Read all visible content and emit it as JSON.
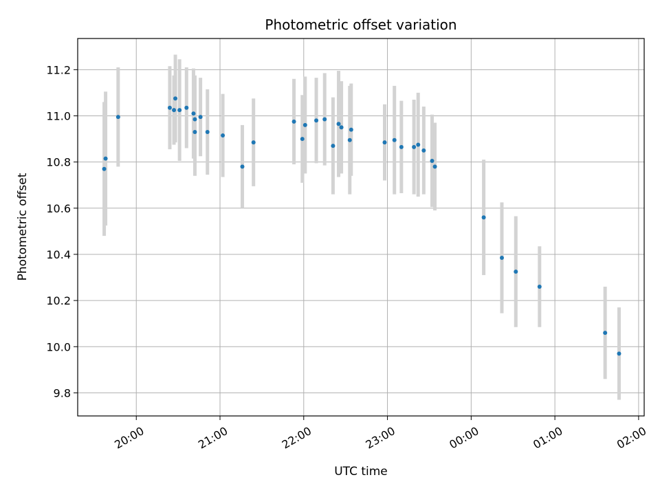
{
  "chart_data": {
    "type": "scatter",
    "title": "Photometric offset variation",
    "xlabel": "UTC time",
    "ylabel": "Photometric offset",
    "grid": true,
    "x_ticks": [
      "20:00",
      "21:00",
      "22:00",
      "23:00",
      "00:00",
      "01:00",
      "02:00"
    ],
    "y_ticks": [
      "9.8",
      "10.0",
      "10.2",
      "10.4",
      "10.6",
      "10.8",
      "11.0",
      "11.2"
    ],
    "xlim": [
      "19:18",
      "02:04"
    ],
    "ylim": [
      9.7,
      11.335
    ],
    "point_color": "#1f77b4",
    "errorbar_color": "#d3d3d3",
    "points": [
      {
        "x": "19:37",
        "y": 10.77,
        "err": 0.29
      },
      {
        "x": "19:38",
        "y": 10.815,
        "err": 0.29
      },
      {
        "x": "19:47",
        "y": 10.995,
        "err": 0.215
      },
      {
        "x": "20:24",
        "y": 11.035,
        "err": 0.18
      },
      {
        "x": "20:27",
        "y": 11.025,
        "err": 0.15
      },
      {
        "x": "20:28",
        "y": 11.075,
        "err": 0.19
      },
      {
        "x": "20:31",
        "y": 11.025,
        "err": 0.22
      },
      {
        "x": "20:36",
        "y": 11.035,
        "err": 0.175
      },
      {
        "x": "20:41",
        "y": 11.01,
        "err": 0.195
      },
      {
        "x": "20:42",
        "y": 10.985,
        "err": 0.19
      },
      {
        "x": "20:42",
        "y": 10.93,
        "err": 0.19
      },
      {
        "x": "20:46",
        "y": 10.995,
        "err": 0.17
      },
      {
        "x": "20:51",
        "y": 10.93,
        "err": 0.185
      },
      {
        "x": "21:02",
        "y": 10.915,
        "err": 0.18
      },
      {
        "x": "21:16",
        "y": 10.78,
        "err": 0.18
      },
      {
        "x": "21:24",
        "y": 10.885,
        "err": 0.19
      },
      {
        "x": "21:53",
        "y": 10.975,
        "err": 0.185
      },
      {
        "x": "21:59",
        "y": 10.9,
        "err": 0.19
      },
      {
        "x": "22:01",
        "y": 10.96,
        "err": 0.21
      },
      {
        "x": "22:09",
        "y": 10.98,
        "err": 0.185
      },
      {
        "x": "22:15",
        "y": 10.985,
        "err": 0.2
      },
      {
        "x": "22:21",
        "y": 10.87,
        "err": 0.21
      },
      {
        "x": "22:25",
        "y": 10.965,
        "err": 0.23
      },
      {
        "x": "22:27",
        "y": 10.95,
        "err": 0.2
      },
      {
        "x": "22:33",
        "y": 10.895,
        "err": 0.235
      },
      {
        "x": "22:34",
        "y": 10.94,
        "err": 0.2
      },
      {
        "x": "22:58",
        "y": 10.885,
        "err": 0.165
      },
      {
        "x": "23:05",
        "y": 10.895,
        "err": 0.235
      },
      {
        "x": "23:10",
        "y": 10.865,
        "err": 0.2
      },
      {
        "x": "23:19",
        "y": 10.865,
        "err": 0.205
      },
      {
        "x": "23:22",
        "y": 10.875,
        "err": 0.225
      },
      {
        "x": "23:26",
        "y": 10.85,
        "err": 0.19
      },
      {
        "x": "23:32",
        "y": 10.805,
        "err": 0.2
      },
      {
        "x": "23:34",
        "y": 10.78,
        "err": 0.19
      },
      {
        "x": "00:09",
        "y": 10.56,
        "err": 0.25
      },
      {
        "x": "00:22",
        "y": 10.385,
        "err": 0.24
      },
      {
        "x": "00:32",
        "y": 10.325,
        "err": 0.24
      },
      {
        "x": "00:49",
        "y": 10.26,
        "err": 0.175
      },
      {
        "x": "01:36",
        "y": 10.06,
        "err": 0.2
      },
      {
        "x": "01:46",
        "y": 9.97,
        "err": 0.2
      }
    ]
  }
}
